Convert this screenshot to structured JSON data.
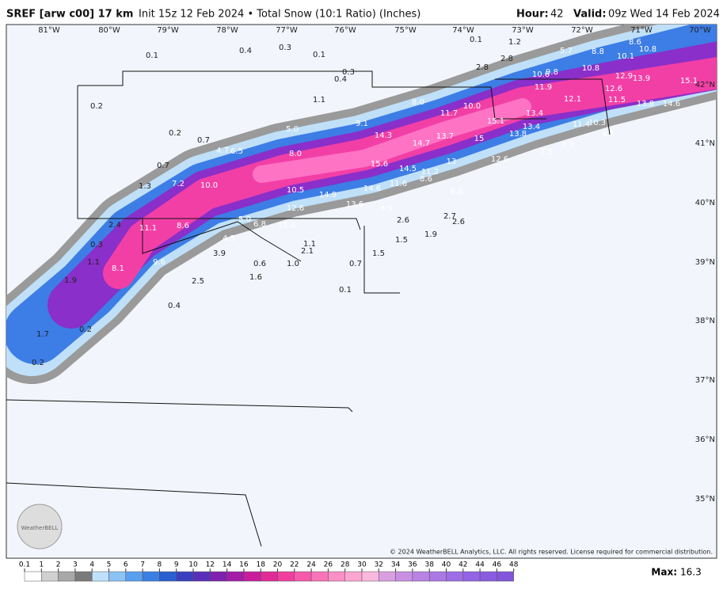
{
  "header": {
    "title": "SREF [arw c00] 17 km",
    "init": "Init 15z 12 Feb 2024 • Total Snow (10:1 Ratio) (Inches)",
    "hour_label": "Hour:",
    "hour": "42",
    "valid_label": "Valid:",
    "valid": "09z Wed 14 Feb 2024"
  },
  "map": {
    "lon_labels": [
      "81°W",
      "80°W",
      "79°W",
      "78°W",
      "77°W",
      "76°W",
      "75°W",
      "74°W",
      "73°W",
      "72°W",
      "71°W",
      "70°W"
    ],
    "lat_labels": [
      "42°N",
      "41°N",
      "40°N",
      "39°N",
      "38°N",
      "37°N",
      "36°N",
      "35°N"
    ],
    "values": [
      "0.1",
      "0.4",
      "0.3",
      "0.1",
      "0.3",
      "0.4",
      "0.1",
      "1.2",
      "2.8",
      "2.8",
      "5.7",
      "8.6",
      "8.8",
      "10.1",
      "10.8",
      "10.6",
      "9.8",
      "10.8",
      "12.9",
      "13.9",
      "15.1",
      "0.2",
      "1.1",
      "8.0",
      "10.0",
      "11.7",
      "11.9",
      "12.1",
      "12.6",
      "13.4",
      "13.8",
      "14.6",
      "11.5",
      "9.1",
      "5.0",
      "14.3",
      "15.1",
      "13.4",
      "11.4",
      "10.3",
      "0.2",
      "0.7",
      "4.7",
      "6.5",
      "8.0",
      "14.7",
      "13.7",
      "15",
      "13.8",
      "4.7",
      "7.7",
      "7.5",
      "12.6",
      "0.7",
      "15.6",
      "14.5",
      "13",
      "11.2",
      "8.6",
      "7.2",
      "10.0",
      "1.3",
      "10.5",
      "14.9",
      "14.6",
      "11.6",
      "6.6",
      "12.6",
      "13.6",
      "4.9",
      "5.0",
      "6.8",
      "11.6",
      "2.6",
      "2.7",
      "2.6",
      "2.4",
      "11.1",
      "8.6",
      "4.5",
      "1.5",
      "1.9",
      "0.3",
      "3.9",
      "1.1",
      "2.1",
      "1.5",
      "1.1",
      "8.1",
      "9.6",
      "0.6",
      "1.0",
      "0.7",
      "1.9",
      "2.5",
      "1.6",
      "0.1",
      "0.4",
      "0.2",
      "1.7",
      "0.2"
    ]
  },
  "copyright": "© 2024 WeatherBELL Analytics, LLC. All rights reserved. License required for commercial distribution.",
  "logo": "WeatherBELL",
  "legend": {
    "ticks": [
      0.1,
      1,
      2,
      3,
      4,
      5,
      6,
      7,
      8,
      9,
      10,
      12,
      14,
      16,
      18,
      20,
      22,
      24,
      26,
      28,
      30,
      32,
      34,
      36,
      38,
      40,
      42,
      44,
      46,
      48
    ],
    "max_label": "Max:",
    "max": 16.3
  }
}
